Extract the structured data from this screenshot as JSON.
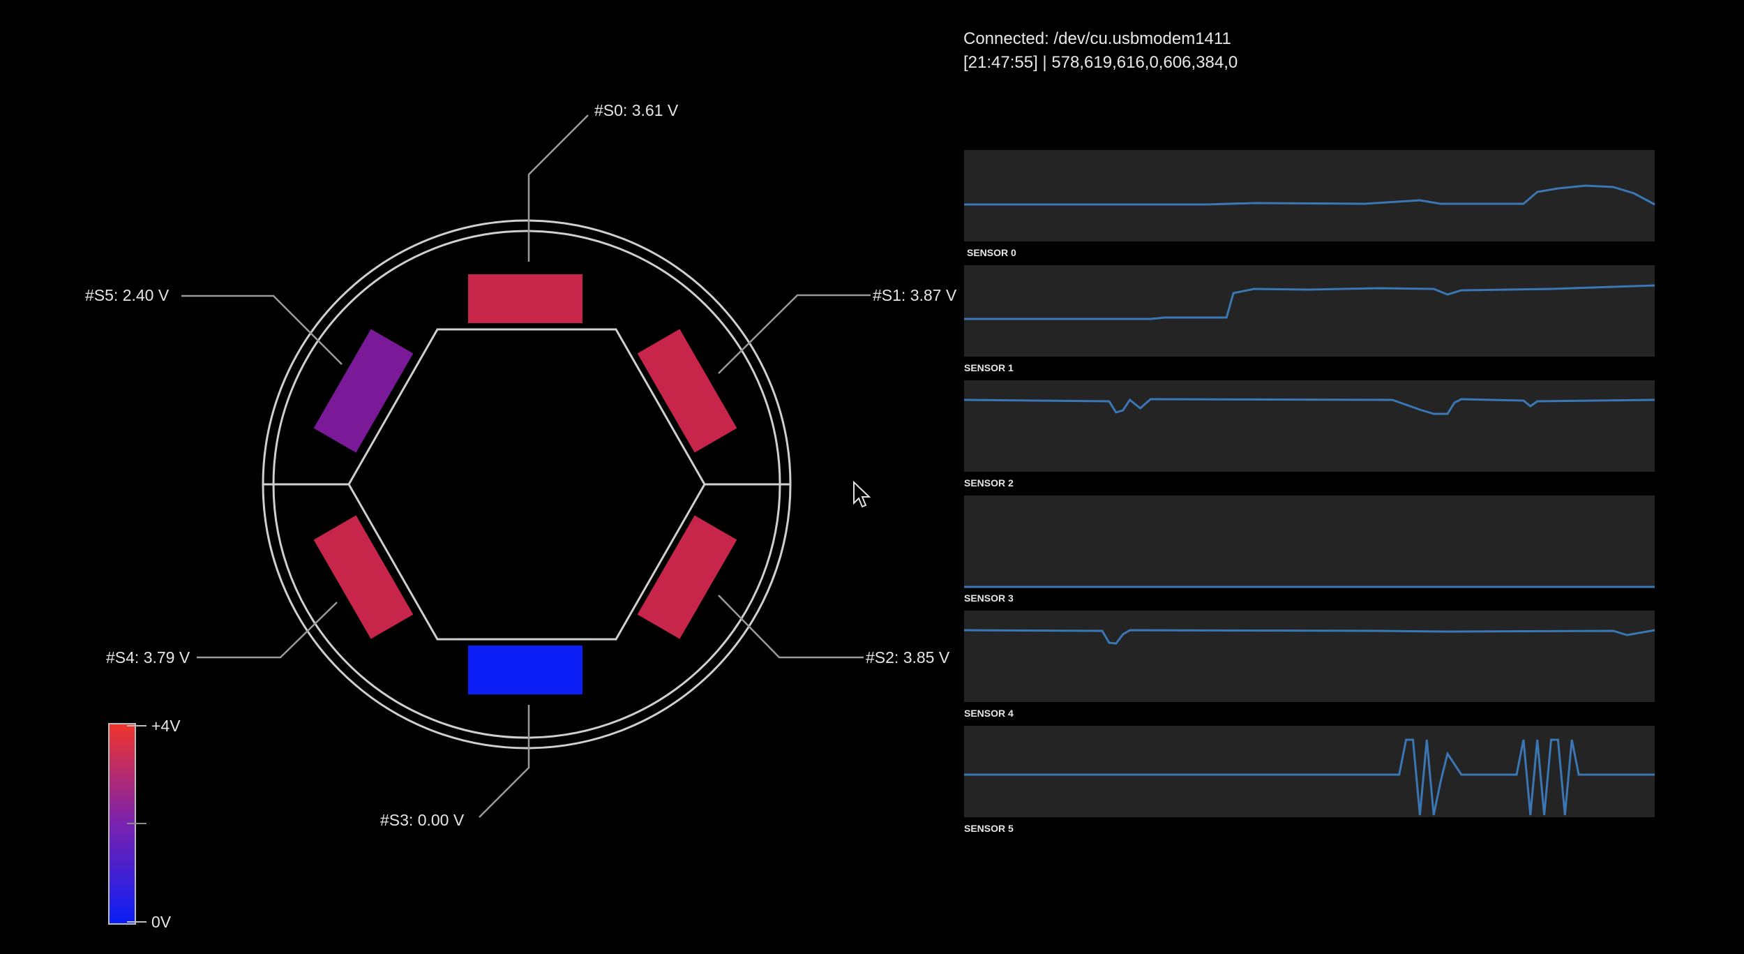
{
  "status": {
    "connection": "Connected: /dev/cu.usbmodem1411",
    "reading": "[21:47:55] | 578,619,616,0,606,384,0"
  },
  "sensors": [
    {
      "label": "#S0: 3.61 V",
      "volts": 3.61,
      "color": "#c8254a"
    },
    {
      "label": "#S1: 3.87 V",
      "volts": 3.87,
      "color": "#c8254a"
    },
    {
      "label": "#S2: 3.85 V",
      "volts": 3.85,
      "color": "#c8254a"
    },
    {
      "label": "#S3: 0.00 V",
      "volts": 0.0,
      "color": "#0a1ef5"
    },
    {
      "label": "#S4: 3.79 V",
      "volts": 3.79,
      "color": "#c8254a"
    },
    {
      "label": "#S5: 2.40 V",
      "volts": 2.4,
      "color": "#7a1a99"
    }
  ],
  "legend": {
    "max_label": "+4V",
    "min_label": "0V"
  },
  "graphs": [
    {
      "title": "SENSOR 0"
    },
    {
      "title": "SENSOR 1"
    },
    {
      "title": "SENSOR 2"
    },
    {
      "title": "SENSOR 3"
    },
    {
      "title": "SENSOR 4"
    },
    {
      "title": "SENSOR 5"
    }
  ]
}
